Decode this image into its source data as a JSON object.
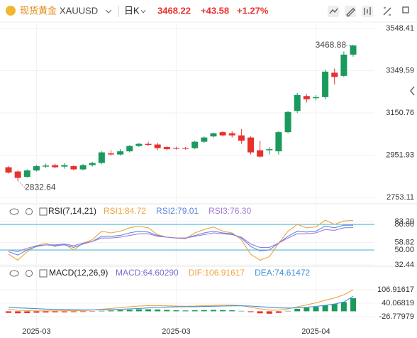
{
  "header": {
    "name": "现货黄金",
    "symbol": "XAUUSD",
    "period": "日K",
    "price": "3468.22",
    "change": "+43.58",
    "change_pct": "+1.27%"
  },
  "chart_data": [
    {
      "type": "candlestick",
      "categories": [
        null,
        null,
        null,
        "2025-03",
        null,
        null,
        null,
        null,
        null,
        null,
        null,
        null,
        null,
        null,
        null,
        null,
        null,
        null,
        "2025-03",
        null,
        null,
        null,
        null,
        null,
        null,
        null,
        null,
        null,
        null,
        null,
        null,
        null,
        null,
        "2025-04",
        null,
        null,
        null,
        null
      ],
      "open": [
        2895,
        2875,
        2850,
        2880,
        2898,
        2905,
        2898,
        2900,
        2885,
        2905,
        2915,
        2960,
        2955,
        2970,
        2995,
        3005,
        3002,
        2990,
        2985,
        2985,
        2985,
        3015,
        3040,
        3060,
        3055,
        3045,
        3035,
        2975,
        2975,
        2970,
        3060,
        3160,
        3230,
        3220,
        3225,
        3340,
        3325,
        3425
      ],
      "close": [
        2870,
        2845,
        2880,
        2900,
        2903,
        2895,
        2905,
        2885,
        2905,
        2915,
        2965,
        2955,
        2970,
        2995,
        3005,
        3000,
        2985,
        2980,
        2982,
        2984,
        3015,
        3035,
        3055,
        3045,
        3045,
        3020,
        2965,
        2945,
        2980,
        3060,
        3155,
        3235,
        3215,
        3225,
        3345,
        3320,
        3425,
        3468.22
      ],
      "high": [
        2900,
        2880,
        2885,
        2905,
        2912,
        2912,
        2915,
        2905,
        2910,
        2920,
        2970,
        2975,
        2980,
        3000,
        3010,
        3015,
        3010,
        2995,
        2992,
        2990,
        3020,
        3040,
        3058,
        3065,
        3065,
        3075,
        3040,
        3020,
        2990,
        3065,
        3160,
        3245,
        3240,
        3235,
        3355,
        3360,
        3440,
        3468.88
      ],
      "low": [
        2865,
        2832.64,
        2845,
        2875,
        2892,
        2890,
        2888,
        2880,
        2880,
        2898,
        2910,
        2950,
        2950,
        2965,
        2990,
        2995,
        2975,
        2975,
        2978,
        2978,
        2980,
        3010,
        3035,
        3040,
        3035,
        3005,
        2955,
        2940,
        2955,
        2955,
        3055,
        3150,
        3200,
        3210,
        3215,
        3285,
        3320,
        3415
      ],
      "up_color": "#1a9a5c",
      "down_color": "#e8302e",
      "ylim": [
        2753.11,
        3548.41
      ],
      "yticks": [
        {
          "value": 3548.41,
          "label": "3548.41"
        },
        {
          "value": 3349.59,
          "label": "3349.59"
        },
        {
          "value": 3150.76,
          "label": "3150.76"
        },
        {
          "value": 2951.93,
          "label": "2951.93"
        },
        {
          "value": 2753.11,
          "label": "2753.11"
        }
      ],
      "annotations": [
        {
          "value": 3468.88,
          "label": "3468.88"
        },
        {
          "value": 2832.64,
          "label": "2832.64"
        }
      ]
    },
    {
      "type": "line",
      "title": "RSI(7,14,21)",
      "series": [
        {
          "name": "RSI1:84.72",
          "color": "#f0a33c",
          "values": [
            45,
            38,
            48,
            55,
            58,
            54,
            57,
            50,
            58,
            62,
            72,
            70,
            72,
            76,
            78,
            76,
            68,
            65,
            64,
            63,
            70,
            74,
            77,
            72,
            70,
            62,
            45,
            38,
            42,
            58,
            72,
            80,
            76,
            77,
            85,
            80,
            84,
            84.72
          ]
        },
        {
          "name": "RSI2:79.01",
          "color": "#5b86e0",
          "values": [
            48,
            44,
            50,
            54,
            56,
            55,
            56,
            53,
            57,
            60,
            66,
            66,
            67,
            70,
            72,
            71,
            67,
            65,
            64,
            64,
            67,
            70,
            72,
            70,
            69,
            64,
            54,
            49,
            50,
            58,
            66,
            72,
            71,
            72,
            78,
            76,
            79,
            79.01
          ]
        },
        {
          "name": "RSI3:76.30",
          "color": "#a07cd6",
          "values": [
            50,
            48,
            52,
            55,
            56,
            56,
            57,
            55,
            58,
            60,
            64,
            64,
            65,
            67,
            69,
            69,
            66,
            65,
            64,
            64,
            66,
            68,
            70,
            69,
            68,
            65,
            57,
            53,
            53,
            58,
            64,
            69,
            69,
            70,
            74,
            73,
            76,
            76.3
          ]
        }
      ],
      "ylim": [
        31.7,
        86.7
      ],
      "levels": [
        {
          "value": 80,
          "label": "80.00"
        },
        {
          "value": 50,
          "label": "50.00"
        }
      ],
      "level_color": "#4fb8d8",
      "yticks": [
        {
          "value": 83.2,
          "label": "83.20"
        },
        {
          "value": 58.82,
          "label": "58.82"
        },
        {
          "value": 32.44,
          "label": "32.44"
        }
      ]
    },
    {
      "type": "macd",
      "title": "MACD(12,26,9)",
      "series": [
        {
          "name": "MACD:64.60290",
          "kind": "bar",
          "color": "#7b6fd0",
          "values": [
            -8,
            -10,
            -9,
            -7,
            -6,
            -5,
            -5,
            -4,
            -3,
            -1,
            2,
            4,
            6,
            8,
            10,
            10,
            9,
            7,
            5,
            4,
            5,
            6,
            7,
            6,
            5,
            2,
            -4,
            -10,
            -12,
            -8,
            2,
            12,
            18,
            22,
            30,
            36,
            46,
            64.6029
          ]
        },
        {
          "name": "DIF:106.91617",
          "kind": "line",
          "color": "#f0a33c",
          "values": [
            10,
            5,
            3,
            2,
            2,
            2,
            3,
            3,
            4,
            6,
            10,
            14,
            18,
            22,
            26,
            28,
            28,
            27,
            26,
            25,
            26,
            28,
            30,
            31,
            31,
            28,
            20,
            12,
            6,
            6,
            12,
            22,
            32,
            42,
            55,
            66,
            82,
            106.91617
          ]
        },
        {
          "name": "DEA:74.61472",
          "kind": "line",
          "color": "#3f8fd8",
          "values": [
            20,
            17,
            15,
            13,
            11,
            10,
            9,
            8,
            7,
            7,
            7,
            8,
            10,
            12,
            14,
            17,
            19,
            21,
            22,
            23,
            23,
            24,
            25,
            26,
            27,
            27,
            26,
            23,
            20,
            17,
            16,
            17,
            20,
            24,
            30,
            36,
            46,
            74.61472
          ]
        }
      ],
      "up_color": "#1a9a5c",
      "down_color": "#e8302e",
      "ylim": [
        -83,
        152.6
      ],
      "yticks": [
        {
          "value": 106.91617,
          "label": "106.91617"
        },
        {
          "value": 40.06819,
          "label": "40.06819"
        },
        {
          "value": -26.77979,
          "label": "-26.77979"
        }
      ]
    }
  ]
}
